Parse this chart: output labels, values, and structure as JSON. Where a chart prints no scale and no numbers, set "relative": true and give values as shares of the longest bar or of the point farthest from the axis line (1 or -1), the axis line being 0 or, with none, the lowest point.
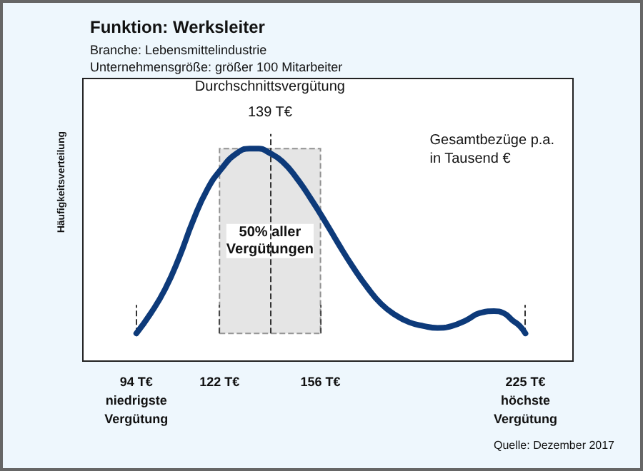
{
  "chart_data": {
    "type": "line",
    "title": "Funktion: Werksleiter",
    "subtitle": "Branche: Lebensmittelindustrie\nUnternehmensgröße: größer 100 Mitarbeiter",
    "ylabel": "Häufigkeitsverteilung",
    "relative": true,
    "grid": false,
    "marker": "none",
    "line_style": "solid",
    "x": [
      94,
      98.9,
      103.7,
      108.4,
      113.1,
      117.9,
      122.6,
      127.4,
      132.1,
      135.3,
      138.5,
      143.2,
      148,
      152.7,
      157.4,
      162.2,
      166.9,
      171.7,
      176.4,
      181.2,
      185.9,
      190.7,
      195.4,
      200.2,
      204.9,
      209.6,
      214.4,
      217.6,
      220.7,
      223.1,
      225
    ],
    "series": [
      {
        "color": "#0d3a7a",
        "values": [
          0,
          0.11,
          0.24,
          0.41,
          0.61,
          0.78,
          0.89,
          0.97,
          1,
          1,
          0.98,
          0.93,
          0.84,
          0.73,
          0.61,
          0.48,
          0.36,
          0.25,
          0.16,
          0.1,
          0.06,
          0.04,
          0.03,
          0.04,
          0.07,
          0.11,
          0.12,
          0.11,
          0.07,
          0.04,
          0
        ]
      }
    ],
    "xlim": [
      76,
      241
    ],
    "xticks": [
      {
        "value": 94,
        "label": "94 T€\nniedrigste\nVergütung"
      },
      {
        "value": 122,
        "label": "122 T€"
      },
      {
        "value": 156,
        "label": "156 T€"
      },
      {
        "value": 225,
        "label": "225 T€\nhöchste\nVergütung"
      }
    ],
    "ref_lines": [
      {
        "axis": "x",
        "value": 139,
        "label": "Durchschnittsvergütung\n139 T€",
        "line_style": "dashed",
        "color": "#333333"
      }
    ],
    "bands": [
      {
        "axis": "x",
        "from": 122,
        "to": 156,
        "label": "50% aller\nVergütungen",
        "color": "#cccccc"
      }
    ],
    "annotations": [
      "Gesamtbezüge p.a.\nin Tausend €",
      "Quelle: Dezember 2017"
    ]
  }
}
